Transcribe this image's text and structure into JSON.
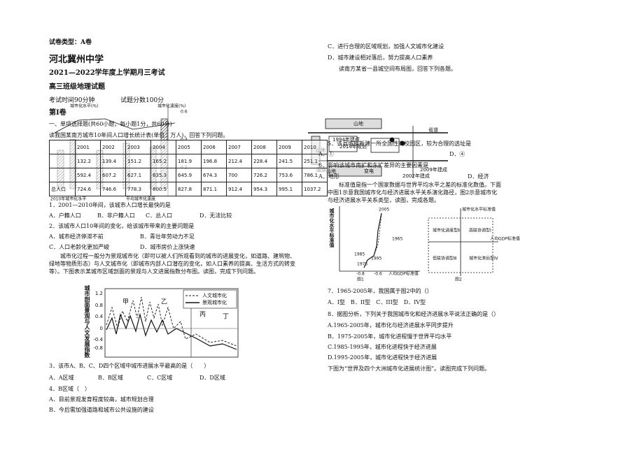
{
  "left_lines": [
    "试卷类型：A卷",
    "河北冀州中学",
    "2021—2022学年度上学期月三考试",
    "高三班级地理试题",
    "考试时间90分钟",
    "试题分数100分",
    "第Ⅰ卷",
    "一、单项选择题(共60小题，每小题1分，共60分)",
    "读我国某南方城市10年间人口增长统计表(单位：万人)，回答下列问题。",
    "1．2001—2010年间，该城市人口增长最快的是",
    "A．户籍人口",
    "B．非户籍人口",
    "C．总人口",
    "D．无法比较",
    "2．该城市人口10年间的变化，给该城市带来的主要问题是",
    "A．城市经济停滞不前",
    "B．青壮年劳动力不足",
    "C．人口老龄化更加严峻",
    "D．城市房价上涨快速",
    "城市化过程一般分为景观城市化（即可以被人们所观看到的城市的进展变化，如道路、建筑物、绿地等物质形态）与人文城市化（即城市内部人口潜在的变化，如人口素养的提高、生活方式的转变等）。下图表示某城市区域剖面的景观与人文进展指数分布图。读图，完成下列问题。",
    "3．该市A、B、C、D四个区域中城市进展水平最高的是（　　）",
    "A．A区域",
    "B．B区域",
    "C．C区域",
    "D．D区域",
    "4．B区域（　）",
    "A．目前景观发育程度较高，城市规划合理",
    "B．今后需加强道路和城市公共设施的建设"
  ],
  "table": {
    "years": [
      "2001",
      "2002",
      "2003",
      "2004",
      "2005",
      "2006",
      "2007",
      "2008",
      "2009",
      "2010"
    ],
    "rows": [
      {
        "cells": [
          132.2,
          139.4,
          151.2,
          165.2,
          181.9,
          196.8,
          212.4,
          228.4,
          241.5,
          251.1
        ]
      },
      {
        "cells": [
          592.4,
          607.2,
          627.1,
          635.3,
          645.9,
          674.3,
          700,
          726.2,
          753.6,
          786.1
        ]
      },
      {
        "label": "总人口",
        "cells": [
          724.6,
          746.6,
          778.3,
          800.5,
          827.8,
          871.1,
          912.4,
          954.3,
          995.1,
          1037.2
        ]
      }
    ],
    "chart_texts": [
      "城市化水平(%)",
      "城市化速度(%)",
      "0.6",
      "0.4",
      "0.2",
      "2010年城市化水平",
      "平均城市化速度"
    ]
  },
  "profile_figure": {
    "y_label": "城市剖面景观与人文发展指数",
    "ticks": [
      "1.2",
      "0.8",
      "0.4",
      "0",
      "-0.4",
      "-0.8"
    ],
    "zones": [
      "甲",
      "乙",
      "丙",
      "丁"
    ],
    "legend": [
      "人文城市化",
      "景观城市化"
    ]
  },
  "right_lines": [
    "C．进行合理的区域规划，加强人文城市化建设",
    "D．城市建设相对落后，努力提高人口素养",
    "读南方某省一县城空间布局图，回答下列各题。",
    "5．该县城拟新建一所全国性高校园区，较为合理的选址是",
    "A．①",
    "D．④",
    "6．影响该城市南扩和东扩差异的主要因素是",
    "A．地形",
    "D．经济",
    "标准值是指一个国家数据与世界平均水平之差的标准化数值。下面中图1示意我国城市化与经济进展水平关系演化路径，图2示意城市化与经济进展水平关系类型，读图，完成各题。",
    "7．1965-2005年，我国属于图2中的（）",
    "A．I型　B．II型　C．III型　D．IV型",
    "8．据图分析，下列关于我国城市化和经济进展水平说法正确的是（）",
    "A.1965-2005年，城市化与经济进展水平同步提升",
    "B．1975-2005年，城市化进程慢于世界平均水平",
    "C.1985-1995年，城市化进程快于经济进展",
    "D.1995-2005年，城市化进程快于经济进展",
    "下图为“世界及四个大洲城市化进展统计图”。读图完成下列问题。"
  ],
  "map": {
    "labels": [
      "山地",
      "省道",
      "山地",
      "1994年建成",
      "2014年规划",
      "国道",
      "山地",
      "变电",
      "2002年建成",
      "2009年建成"
    ]
  },
  "evolution_figure": {
    "y_label": "城市化水平标准值",
    "points": [
      "2005",
      "1965",
      "1985",
      "1995",
      "1975"
    ],
    "x_ticks": [
      "-0.8",
      "-0.6"
    ],
    "x_label": "人均GDP标准值",
    "caption": "图1"
  },
  "types_figure": {
    "y_label": "城市化水平标准值",
    "quadrants": [
      "城市化进度型Ⅱ",
      "高联协调型Ⅰ",
      "低联协调型Ⅲ",
      "城市化滞后型Ⅳ"
    ],
    "x_label": "人均GDP标准值",
    "caption": "图2"
  }
}
